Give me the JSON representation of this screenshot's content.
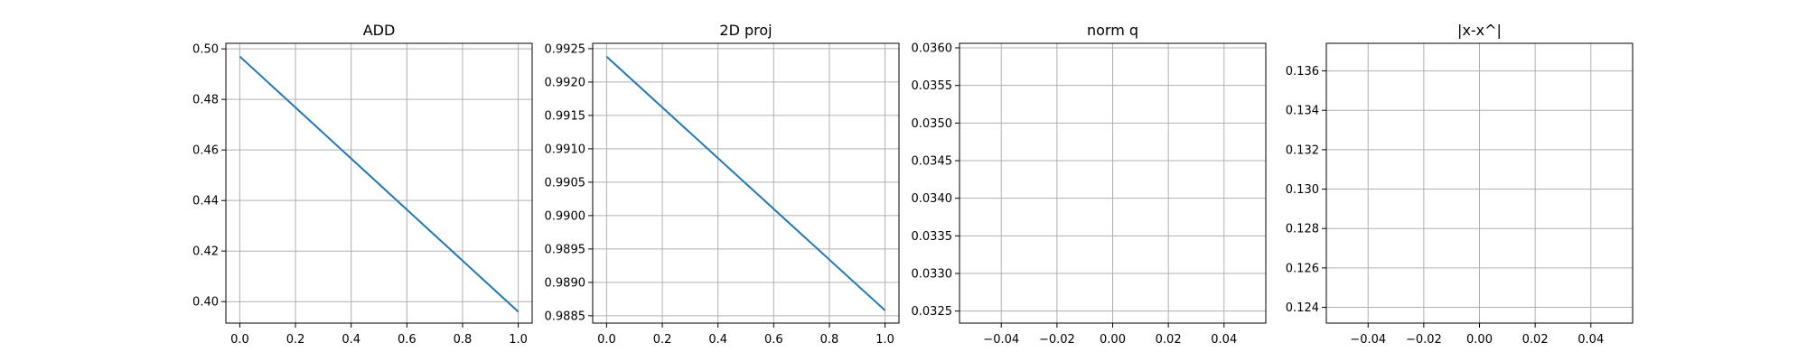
{
  "chart_data": [
    {
      "type": "line",
      "title": "ADD",
      "xlabel": "",
      "ylabel": "",
      "xlim": [
        -0.05,
        1.05
      ],
      "ylim": [
        0.3915,
        0.5022
      ],
      "xticks": [
        0.0,
        0.2,
        0.4,
        0.6,
        0.8,
        1.0
      ],
      "xtick_labels": [
        "0.0",
        "0.2",
        "0.4",
        "0.6",
        "0.8",
        "1.0"
      ],
      "yticks": [
        0.4,
        0.42,
        0.44,
        0.46,
        0.48,
        0.5
      ],
      "ytick_labels": [
        "0.40",
        "0.42",
        "0.44",
        "0.46",
        "0.48",
        "0.50"
      ],
      "grid": true,
      "series": [
        {
          "x": [
            0.0,
            1.0
          ],
          "y": [
            0.497,
            0.396
          ],
          "color": "#1f77b4"
        }
      ]
    },
    {
      "type": "line",
      "title": "2D proj",
      "xlabel": "",
      "ylabel": "",
      "xlim": [
        -0.05,
        1.05
      ],
      "ylim": [
        0.98839,
        0.99258
      ],
      "xticks": [
        0.0,
        0.2,
        0.4,
        0.6,
        0.8,
        1.0
      ],
      "xtick_labels": [
        "0.0",
        "0.2",
        "0.4",
        "0.6",
        "0.8",
        "1.0"
      ],
      "yticks": [
        0.9885,
        0.989,
        0.9895,
        0.99,
        0.9905,
        0.991,
        0.9915,
        0.992,
        0.9925
      ],
      "ytick_labels": [
        "0.9885",
        "0.9890",
        "0.9895",
        "0.9900",
        "0.9905",
        "0.9910",
        "0.9915",
        "0.9920",
        "0.9925"
      ],
      "grid": true,
      "series": [
        {
          "x": [
            0.0,
            1.0
          ],
          "y": [
            0.99238,
            0.98858
          ],
          "color": "#1f77b4"
        }
      ]
    },
    {
      "type": "line",
      "title": "norm q",
      "xlabel": "",
      "ylabel": "",
      "xlim": [
        -0.055,
        0.055
      ],
      "ylim": [
        0.03234,
        0.03606
      ],
      "xticks": [
        -0.04,
        -0.02,
        0.0,
        0.02,
        0.04
      ],
      "xtick_labels": [
        "−0.04",
        "−0.02",
        "0.00",
        "0.02",
        "0.04"
      ],
      "yticks": [
        0.0325,
        0.033,
        0.0335,
        0.034,
        0.0345,
        0.035,
        0.0355,
        0.036
      ],
      "ytick_labels": [
        "0.0325",
        "0.0330",
        "0.0335",
        "0.0340",
        "0.0345",
        "0.0350",
        "0.0355",
        "0.0360"
      ],
      "grid": true,
      "series": []
    },
    {
      "type": "line",
      "title": "|x-x^|",
      "xlabel": "",
      "ylabel": "",
      "xlim": [
        -0.055,
        0.055
      ],
      "ylim": [
        0.1232,
        0.1374
      ],
      "xticks": [
        -0.04,
        -0.02,
        0.0,
        0.02,
        0.04
      ],
      "xtick_labels": [
        "−0.04",
        "−0.02",
        "0.00",
        "0.02",
        "0.04"
      ],
      "yticks": [
        0.124,
        0.126,
        0.128,
        0.13,
        0.132,
        0.134,
        0.136
      ],
      "ytick_labels": [
        "0.124",
        "0.126",
        "0.128",
        "0.130",
        "0.132",
        "0.134",
        "0.136"
      ],
      "grid": true,
      "series": []
    }
  ]
}
